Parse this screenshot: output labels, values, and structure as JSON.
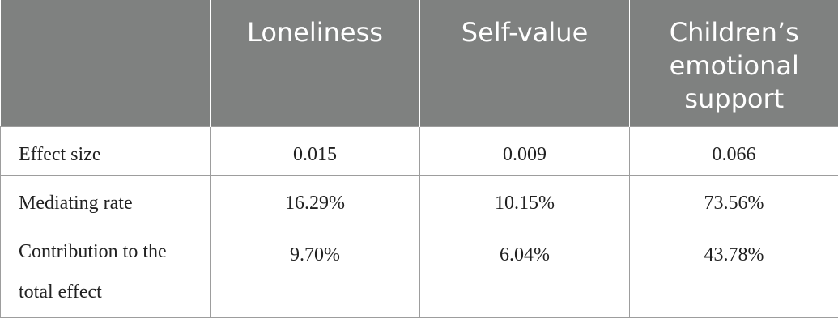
{
  "table": {
    "headers": [
      "",
      "Loneliness",
      "Self-value",
      "Children’s emotional support"
    ],
    "rows": [
      {
        "label": "Effect size",
        "values": [
          "0.015",
          "0.009",
          "0.066"
        ]
      },
      {
        "label": "Mediating rate",
        "values": [
          "16.29%",
          "10.15%",
          "73.56%"
        ]
      },
      {
        "label": "Contribution to the total effect",
        "values": [
          "9.70%",
          "6.04%",
          "43.78%"
        ]
      }
    ]
  }
}
